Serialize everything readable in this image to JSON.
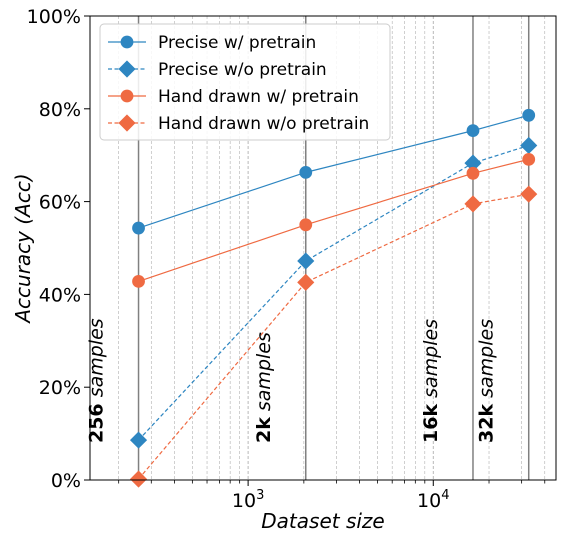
{
  "chart_data": {
    "type": "line",
    "xlabel": "Dataset size",
    "ylabel": "Accuracy (Acc)",
    "x_scale": "log",
    "xlim": [
      140,
      46000
    ],
    "ylim": [
      0,
      100
    ],
    "y_ticks": [
      0,
      20,
      40,
      60,
      80,
      100
    ],
    "y_tick_labels": [
      "0%",
      "20%",
      "40%",
      "60%",
      "80%",
      "100%"
    ],
    "x_major_ticks": [
      1000,
      10000
    ],
    "x_tick_labels": [
      {
        "base": "10",
        "exp": "3"
      },
      {
        "base": "10",
        "exp": "4"
      }
    ],
    "grid": "x-minor dashed",
    "legend": "top-left",
    "x": [
      256,
      2048,
      16384,
      32768
    ],
    "series": [
      {
        "name": "Precise w/ pretrain",
        "values": [
          54.3,
          66.3,
          75.3,
          78.6
        ],
        "color": "#2e86c1",
        "linestyle": "solid",
        "marker": "circle"
      },
      {
        "name": "Precise w/o pretrain",
        "values": [
          8.6,
          47.2,
          68.3,
          72.1
        ],
        "color": "#2e86c1",
        "linestyle": "dashed",
        "marker": "diamond"
      },
      {
        "name": "Hand drawn w/ pretrain",
        "values": [
          42.8,
          55.0,
          66.1,
          69.1
        ],
        "color": "#ef6a42",
        "linestyle": "solid",
        "marker": "circle"
      },
      {
        "name": "Hand drawn w/o pretrain",
        "values": [
          0.2,
          42.6,
          59.5,
          61.6
        ],
        "color": "#ef6a42",
        "linestyle": "dashed",
        "marker": "diamond"
      }
    ],
    "annotations": [
      {
        "x": 256,
        "bold": "256",
        "rest": " samples"
      },
      {
        "x": 2048,
        "bold": "2k",
        "rest": " samples"
      },
      {
        "x": 16384,
        "bold": "16k",
        "rest": " samples"
      },
      {
        "x": 32768,
        "bold": "32k",
        "rest": " samples"
      }
    ]
  }
}
